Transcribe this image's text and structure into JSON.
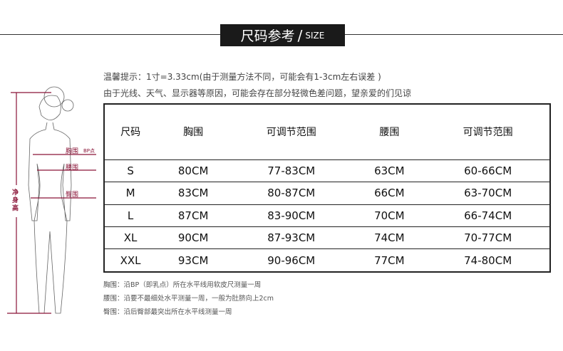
{
  "header": {
    "title_zh": "尺码参考",
    "separator": "/",
    "title_en": "SIZE"
  },
  "notes": [
    "温馨提示：1寸=3.33cm(由于测量方法不同，可能会有1-3cm左右误差 )",
    "由于光线、天气、显示器等原因，可能会存在部分轻微色差问题，望亲爱的们见谅"
  ],
  "figure": {
    "labels": {
      "bust": "胸围",
      "bp": "BP点",
      "waist": "腰围",
      "hip": "臀围",
      "height": "净身高"
    },
    "accent_color": "#8a1538"
  },
  "table": {
    "columns": [
      "尺码",
      "胸围",
      "可调节范围",
      "腰围",
      "可调节范围"
    ],
    "rows": [
      [
        "S",
        "80CM",
        "77-83CM",
        "63CM",
        "60-66CM"
      ],
      [
        "M",
        "83CM",
        "80-87CM",
        "66CM",
        "63-70CM"
      ],
      [
        "L",
        "87CM",
        "83-90CM",
        "70CM",
        "66-74CM"
      ],
      [
        "XL",
        "90CM",
        "87-93CM",
        "74CM",
        "70-77CM"
      ],
      [
        "XXL",
        "93CM",
        "90-96CM",
        "77CM",
        "74-80CM"
      ]
    ]
  },
  "footnotes": [
    "胸围：沿BP（即乳点）所在水平线用软皮尺测量一周",
    "腰围：沿要不最细处水平测量一周，一般为肚脐向上2cm",
    "臀围：沿后臀部最突出所在水平线测量一周"
  ]
}
